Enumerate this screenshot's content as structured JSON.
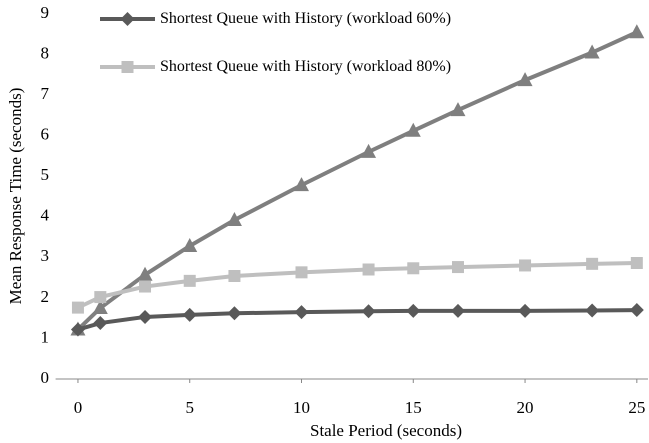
{
  "chart_data": {
    "type": "line",
    "x_label": "Stale Period (seconds)",
    "y_label": "Mean Response Time (seconds)",
    "x": [
      0,
      1,
      3,
      5,
      7,
      10,
      13,
      15,
      17,
      20,
      23,
      25
    ],
    "series": [
      {
        "name": "Shortest Queue with History (workload 60%)",
        "color": "#595959",
        "marker": "diamond",
        "values": [
          1.22,
          1.38,
          1.53,
          1.58,
          1.62,
          1.65,
          1.67,
          1.68,
          1.68,
          1.68,
          1.69,
          1.7
        ]
      },
      {
        "name": "Shortest Queue with History (workload 80%)",
        "color": "#bfbfbf",
        "marker": "square",
        "values": [
          1.76,
          2.02,
          2.28,
          2.42,
          2.54,
          2.63,
          2.7,
          2.73,
          2.76,
          2.8,
          2.84,
          2.86
        ]
      },
      {
        "color": "#7f7f7f",
        "marker": "triangle",
        "values": [
          1.22,
          1.75,
          2.57,
          3.28,
          3.92,
          4.78,
          5.6,
          6.12,
          6.63,
          7.37,
          8.05,
          8.55
        ]
      }
    ],
    "xlim": [
      -1,
      25.5
    ],
    "xticks": [
      0,
      5,
      10,
      15,
      20,
      25
    ],
    "ylim": [
      0,
      9
    ],
    "yticks": [
      0,
      1,
      2,
      3,
      4,
      5,
      6,
      7,
      8,
      9
    ],
    "grid": false,
    "legend": "top"
  }
}
